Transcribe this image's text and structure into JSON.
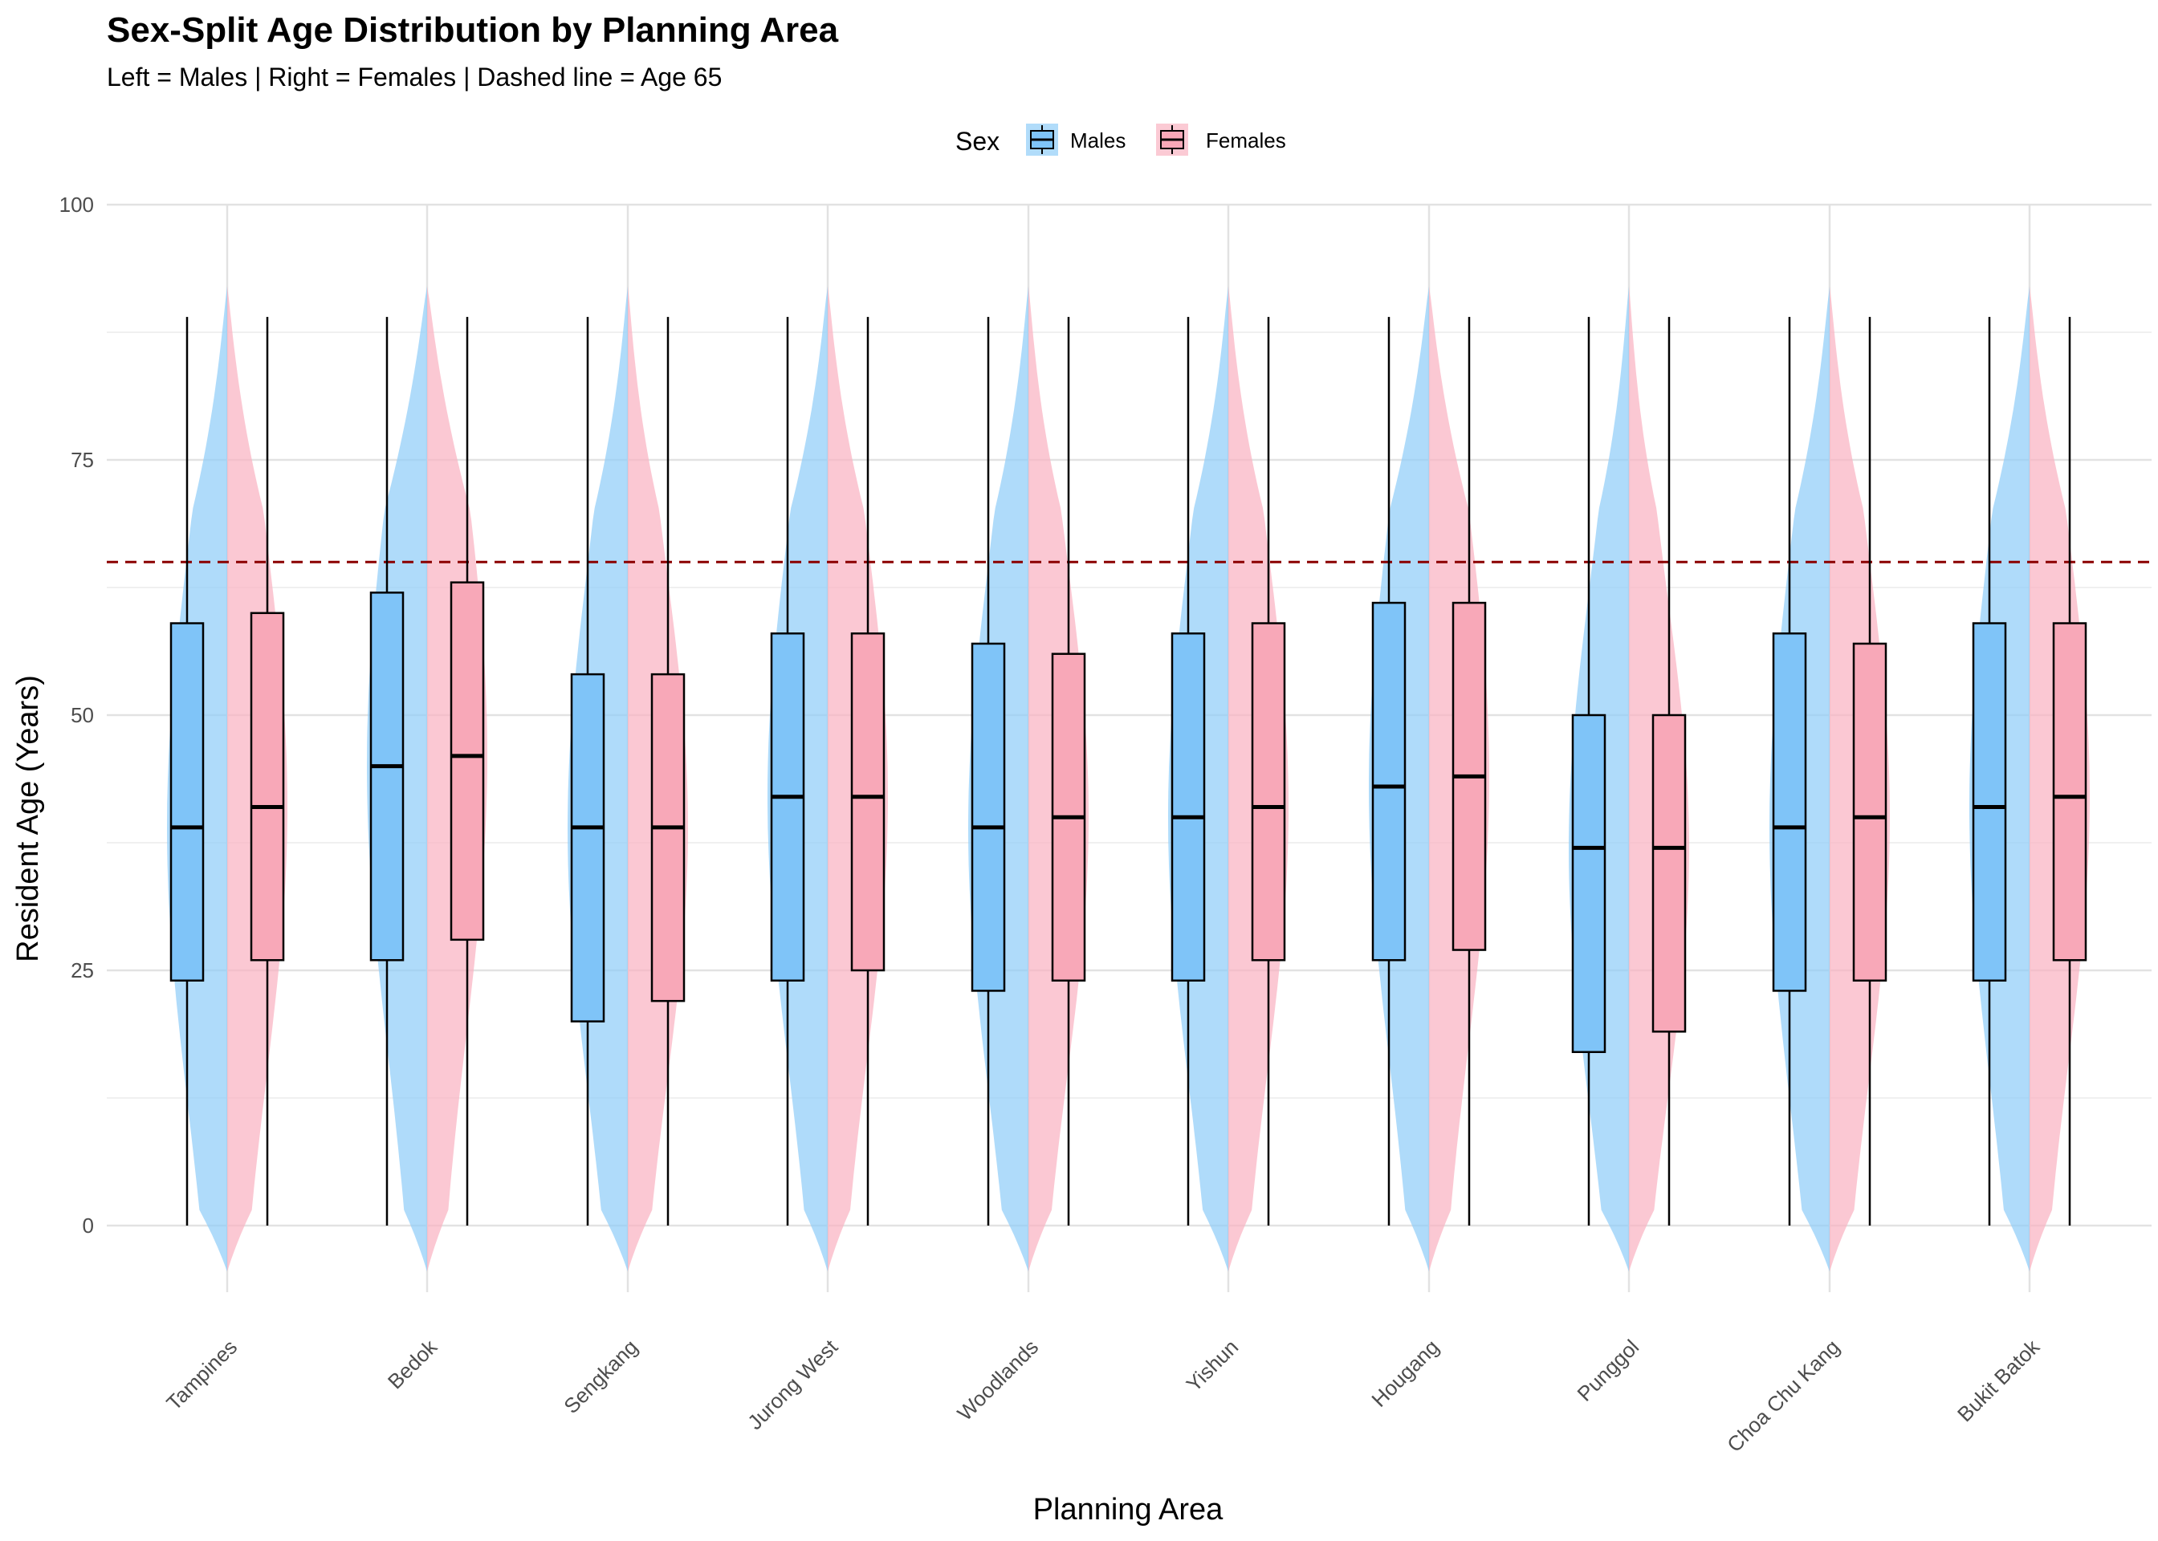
{
  "chart_data": {
    "type": "violin-box",
    "title": "Sex-Split Age Distribution by Planning Area",
    "subtitle": "Left = Males | Right = Females | Dashed line = Age 65",
    "xlabel": "Planning Area",
    "ylabel": "Resident Age (Years)",
    "ylim": [
      -10,
      100
    ],
    "yticks": [
      0,
      25,
      50,
      75,
      100
    ],
    "grid": true,
    "legend": {
      "title": "Sex",
      "position": "top",
      "items": [
        {
          "label": "Males",
          "fill": "#7fc4f8",
          "violin": "#90cdf8"
        },
        {
          "label": "Females",
          "fill": "#f8a8b8",
          "violin": "#f9b3c2"
        }
      ]
    },
    "reference_line": {
      "y": 65,
      "color": "#8b0000",
      "style": "dashed"
    },
    "categories": [
      "Tampines",
      "Bedok",
      "Sengkang",
      "Jurong West",
      "Woodlands",
      "Yishun",
      "Hougang",
      "Punggol",
      "Choa Chu Kang",
      "Bukit Batok"
    ],
    "series": [
      {
        "name": "Males",
        "boxes": [
          {
            "min": 0,
            "q1": 24,
            "median": 39,
            "q3": 59,
            "max": 89
          },
          {
            "min": 0,
            "q1": 26,
            "median": 45,
            "q3": 62,
            "max": 89
          },
          {
            "min": 0,
            "q1": 20,
            "median": 39,
            "q3": 54,
            "max": 89
          },
          {
            "min": 0,
            "q1": 24,
            "median": 42,
            "q3": 58,
            "max": 89
          },
          {
            "min": 0,
            "q1": 23,
            "median": 39,
            "q3": 57,
            "max": 89
          },
          {
            "min": 0,
            "q1": 24,
            "median": 40,
            "q3": 58,
            "max": 89
          },
          {
            "min": 0,
            "q1": 26,
            "median": 43,
            "q3": 61,
            "max": 89
          },
          {
            "min": 0,
            "q1": 17,
            "median": 37,
            "q3": 50,
            "max": 89
          },
          {
            "min": 0,
            "q1": 23,
            "median": 39,
            "q3": 58,
            "max": 89
          },
          {
            "min": 0,
            "q1": 24,
            "median": 41,
            "q3": 59,
            "max": 89
          }
        ]
      },
      {
        "name": "Females",
        "boxes": [
          {
            "min": 0,
            "q1": 26,
            "median": 41,
            "q3": 60,
            "max": 89
          },
          {
            "min": 0,
            "q1": 28,
            "median": 46,
            "q3": 63,
            "max": 89
          },
          {
            "min": 0,
            "q1": 22,
            "median": 39,
            "q3": 54,
            "max": 89
          },
          {
            "min": 0,
            "q1": 25,
            "median": 42,
            "q3": 58,
            "max": 89
          },
          {
            "min": 0,
            "q1": 24,
            "median": 40,
            "q3": 56,
            "max": 89
          },
          {
            "min": 0,
            "q1": 26,
            "median": 41,
            "q3": 59,
            "max": 89
          },
          {
            "min": 0,
            "q1": 27,
            "median": 44,
            "q3": 61,
            "max": 89
          },
          {
            "min": 0,
            "q1": 19,
            "median": 37,
            "q3": 50,
            "max": 89
          },
          {
            "min": 0,
            "q1": 24,
            "median": 40,
            "q3": 57,
            "max": 89
          },
          {
            "min": 0,
            "q1": 26,
            "median": 42,
            "q3": 59,
            "max": 89
          }
        ]
      }
    ]
  }
}
